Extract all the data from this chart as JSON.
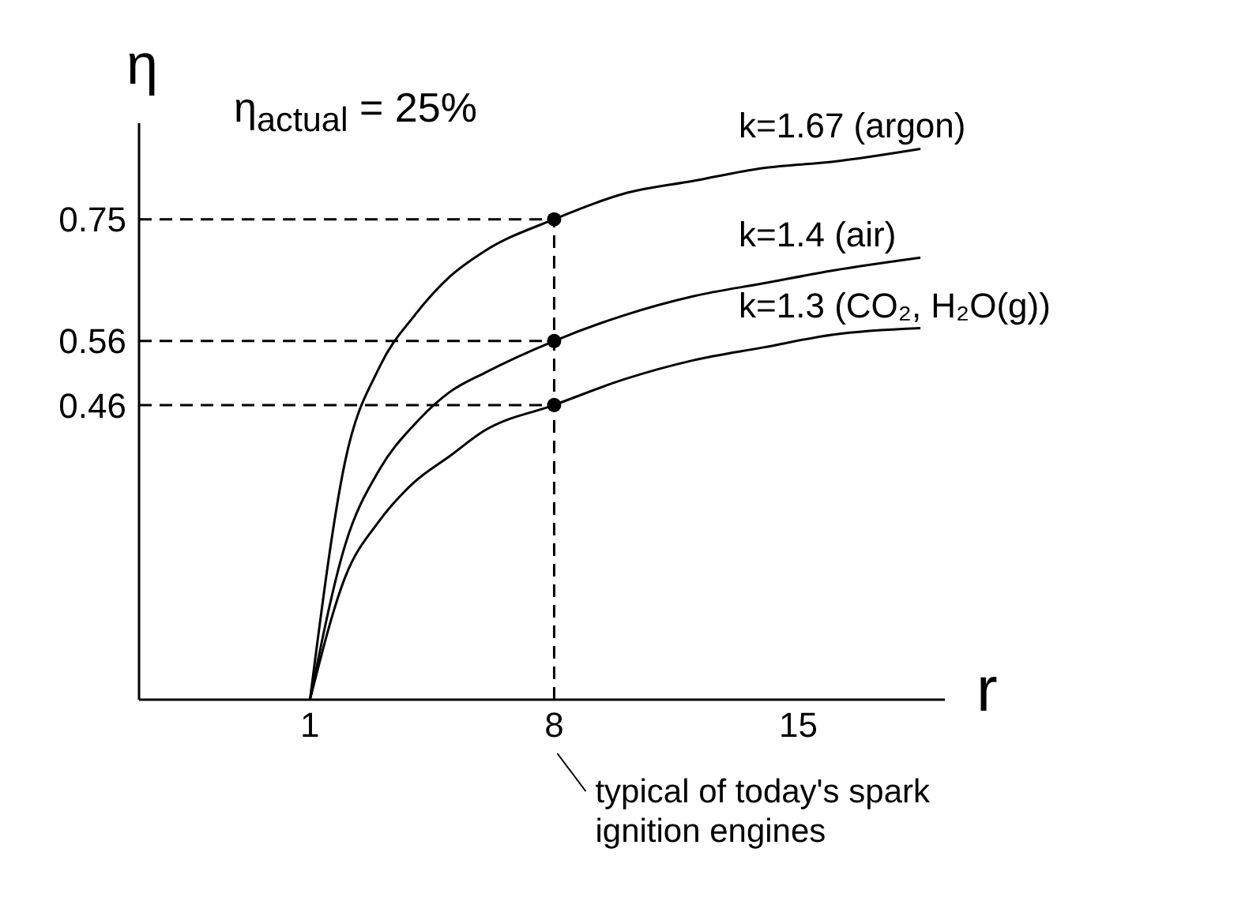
{
  "chart_data": {
    "type": "line",
    "xlabel": "r",
    "ylabel": "η",
    "xlim": [
      -3.9,
      19.2
    ],
    "ylim": [
      0,
      0.9
    ],
    "xticks": [
      1,
      8,
      15
    ],
    "yticks": [
      0.46,
      0.56,
      0.75
    ],
    "grid": false,
    "legend": false,
    "series": [
      {
        "name": "k=1.67 (argon)",
        "color": "#000000",
        "marker": "none",
        "x": [
          1,
          2,
          3,
          4,
          5,
          6,
          8,
          10,
          12,
          14,
          16,
          18.5
        ],
        "values": [
          0,
          0.37,
          0.52,
          0.6,
          0.66,
          0.7,
          0.75,
          0.79,
          0.81,
          0.83,
          0.84,
          0.86
        ]
      },
      {
        "name": "k=1.4 (air)",
        "color": "#000000",
        "marker": "none",
        "x": [
          1,
          2,
          3,
          4,
          5,
          6,
          8,
          10,
          12,
          14,
          16,
          18.5
        ],
        "values": [
          0,
          0.24,
          0.36,
          0.43,
          0.48,
          0.51,
          0.56,
          0.6,
          0.63,
          0.65,
          0.67,
          0.69
        ]
      },
      {
        "name": "k=1.3 (CO₂, H₂O(g))",
        "color": "#000000",
        "marker": "none",
        "x": [
          1,
          2,
          3,
          4,
          5,
          6,
          8,
          10,
          12,
          14,
          16,
          18.5
        ],
        "values": [
          0,
          0.19,
          0.28,
          0.34,
          0.38,
          0.42,
          0.46,
          0.5,
          0.53,
          0.55,
          0.57,
          0.58
        ]
      },
      {
        "type": "scatter",
        "color": "#000000",
        "marker": "circle",
        "x": [
          8,
          8,
          8
        ],
        "values": [
          0.75,
          0.56,
          0.46
        ]
      }
    ],
    "ref_lines": [
      {
        "axis": "x",
        "value": 8,
        "line_style": "dashed",
        "color": "#000000"
      },
      {
        "axis": "y",
        "value": 0.75,
        "line_style": "dashed",
        "color": "#000000"
      },
      {
        "axis": "y",
        "value": 0.56,
        "line_style": "dashed",
        "color": "#000000"
      },
      {
        "axis": "y",
        "value": 0.46,
        "line_style": "dashed",
        "color": "#000000"
      }
    ],
    "annotations": [
      "η$_{actual}$ = 25%",
      "typical of today's spark ignition engines"
    ]
  }
}
